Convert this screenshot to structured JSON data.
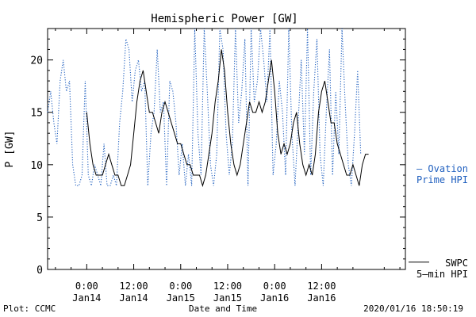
{
  "footer": {
    "left": "Plot: CCMC",
    "center": "Date and Time",
    "right": "2020/01/16 18:50:19"
  },
  "chart_data": {
    "type": "line",
    "title": "Hemispheric Power [GW]",
    "xlabel": "Date and Time",
    "ylabel": "P [GW]",
    "ylim": [
      0,
      23
    ],
    "xlim": [
      -5,
      40.7
    ],
    "yticks": [
      0,
      5,
      10,
      15,
      20
    ],
    "xticks": [
      {
        "x": 0,
        "line1": "0:00",
        "line2": "Jan14"
      },
      {
        "x": 6,
        "line1": "12:00",
        "line2": "Jan14"
      },
      {
        "x": 12,
        "line1": "0:00",
        "line2": "Jan15"
      },
      {
        "x": 18,
        "line1": "12:00",
        "line2": "Jan15"
      },
      {
        "x": 24,
        "line1": "0:00",
        "line2": "Jan16"
      },
      {
        "x": 30,
        "line1": "12:00",
        "line2": "Jan16"
      }
    ],
    "x_unit": "hours from Jan14 0:00",
    "legend_position": "right",
    "series": [
      {
        "name": "Ovation Prime HPI",
        "legend_line1": "– Ovation",
        "legend_line2": "Prime HPI",
        "legend_y": 10,
        "color": "#1f5fbf",
        "style": "dotted",
        "x": [
          -5.0,
          -4.6,
          -4.2,
          -3.8,
          -3.4,
          -3.0,
          -2.6,
          -2.2,
          -1.8,
          -1.4,
          -1.0,
          -0.6,
          -0.2,
          0.2,
          0.6,
          1.0,
          1.4,
          1.8,
          2.2,
          2.6,
          3.0,
          3.4,
          3.8,
          4.2,
          4.6,
          5.0,
          5.4,
          5.8,
          6.2,
          6.6,
          7.0,
          7.4,
          7.8,
          8.2,
          8.6,
          9.0,
          9.4,
          9.8,
          10.2,
          10.6,
          11.0,
          11.4,
          11.8,
          12.2,
          12.6,
          13.0,
          13.4,
          13.8,
          14.2,
          14.6,
          15.0,
          15.4,
          15.8,
          16.2,
          16.6,
          17.0,
          17.4,
          17.8,
          18.2,
          18.6,
          19.0,
          19.4,
          19.8,
          20.2,
          20.6,
          21.0,
          21.4,
          21.8,
          22.2,
          22.6,
          23.0,
          23.4,
          23.8,
          24.2,
          24.6,
          25.0,
          25.4,
          25.8,
          26.2,
          26.6,
          27.0,
          27.4,
          27.8,
          28.2,
          28.6,
          29.0,
          29.4,
          29.8,
          30.2,
          30.6,
          31.0,
          31.4,
          31.8,
          32.2,
          32.6,
          33.0,
          33.4,
          33.8,
          34.2,
          34.6,
          35.0
        ],
        "y": [
          15,
          17,
          14,
          12,
          18,
          20,
          17,
          18,
          10,
          8,
          8,
          9,
          18,
          9,
          8,
          10,
          9,
          8,
          12,
          8,
          8,
          9,
          8,
          14,
          17,
          22,
          21,
          16,
          19,
          20,
          17,
          18,
          8,
          13,
          15,
          21,
          15,
          16,
          8,
          18,
          17,
          14,
          9,
          12,
          8,
          11,
          8,
          23,
          13,
          9,
          23,
          17,
          10,
          8,
          11,
          23,
          21,
          13,
          9,
          12,
          23,
          14,
          17,
          22,
          8,
          23,
          16,
          18,
          23,
          20,
          16,
          23,
          9,
          12,
          18,
          15,
          9,
          23,
          13,
          8,
          14,
          20,
          11,
          23,
          9,
          17,
          22,
          11,
          8,
          15,
          21,
          9,
          17,
          11,
          23,
          16,
          10,
          8,
          13,
          19,
          11
        ]
      },
      {
        "name": "SWPC 5-min HPI",
        "legend_line1": "SWPC",
        "legend_line2": "5–min HPI",
        "legend_y": 1,
        "color": "#000000",
        "style": "solid",
        "x": [
          0.0,
          0.4,
          0.8,
          1.2,
          1.6,
          2.0,
          2.4,
          2.8,
          3.2,
          3.6,
          4.0,
          4.4,
          4.8,
          5.2,
          5.6,
          6.0,
          6.4,
          6.8,
          7.2,
          7.6,
          8.0,
          8.4,
          8.8,
          9.2,
          9.6,
          10.0,
          10.4,
          10.8,
          11.2,
          11.6,
          12.0,
          12.4,
          12.8,
          13.2,
          13.6,
          14.0,
          14.4,
          14.8,
          15.2,
          15.6,
          16.0,
          16.4,
          16.8,
          17.2,
          17.6,
          18.0,
          18.4,
          18.8,
          19.2,
          19.6,
          20.0,
          20.4,
          20.8,
          21.2,
          21.6,
          22.0,
          22.4,
          22.8,
          23.2,
          23.6,
          24.0,
          24.4,
          24.8,
          25.2,
          25.6,
          26.0,
          26.4,
          26.8,
          27.2,
          27.6,
          28.0,
          28.4,
          28.8,
          29.2,
          29.6,
          30.0,
          30.4,
          30.8,
          31.2,
          31.6,
          32.0,
          32.4,
          32.8,
          33.2,
          33.6,
          34.0,
          34.4,
          34.8,
          35.2,
          35.6,
          36.0
        ],
        "y": [
          15,
          12,
          10,
          9,
          9,
          9,
          10,
          11,
          10,
          9,
          9,
          8,
          8,
          9,
          10,
          13,
          16,
          18,
          19,
          17,
          15,
          15,
          14,
          13,
          15,
          16,
          15,
          14,
          13,
          12,
          12,
          11,
          10,
          10,
          9,
          9,
          9,
          8,
          9,
          11,
          13,
          16,
          18,
          21,
          19,
          15,
          12,
          10,
          9,
          10,
          12,
          14,
          16,
          15,
          15,
          16,
          15,
          16,
          18,
          20,
          17,
          13,
          11,
          12,
          11,
          12,
          14,
          15,
          12,
          10,
          9,
          10,
          9,
          11,
          15,
          17,
          18,
          16,
          14,
          14,
          12,
          11,
          10,
          9,
          9,
          10,
          9,
          8,
          10,
          11,
          11
        ]
      }
    ]
  }
}
